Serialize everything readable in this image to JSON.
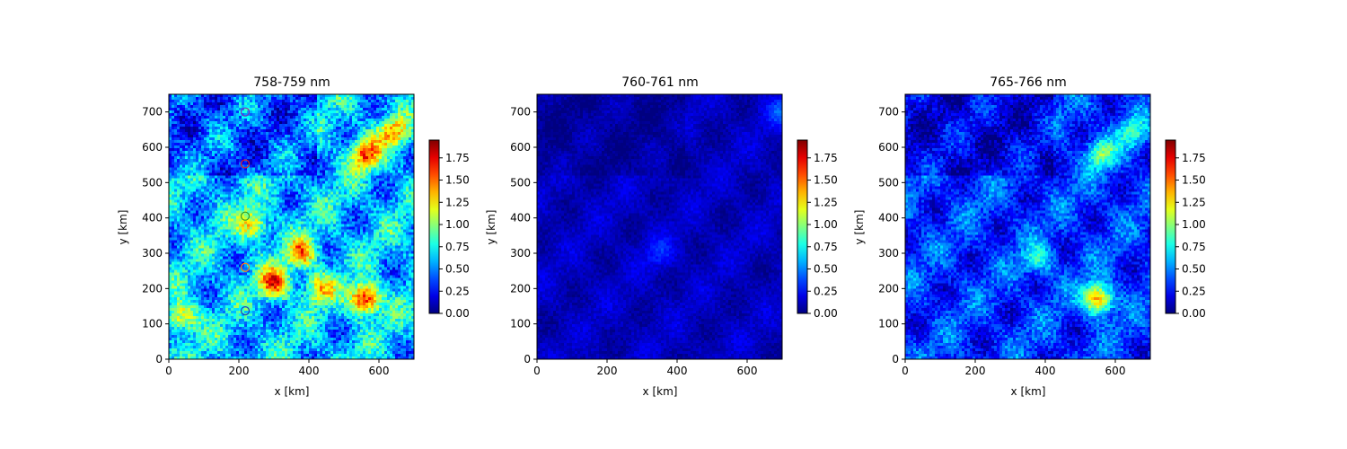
{
  "chart_data": [
    {
      "type": "heatmap",
      "title": "758-759 nm",
      "xlabel": "x [km]",
      "ylabel": "y [km]",
      "xlim": [
        0,
        700
      ],
      "ylim": [
        0,
        750
      ],
      "xticks": [
        0,
        200,
        400,
        600
      ],
      "yticks": [
        0,
        100,
        200,
        300,
        400,
        500,
        600,
        700
      ],
      "colormap": "jet",
      "clim": [
        0,
        1.95
      ],
      "colorbar_ticks": [
        "0.00",
        "0.25",
        "0.50",
        "0.75",
        "1.00",
        "1.25",
        "1.50",
        "1.75"
      ],
      "base_level": 0.62,
      "texture_amplitude": 0.35,
      "hotspots": [
        {
          "x": 560,
          "y": 580,
          "value": 1.55
        },
        {
          "x": 380,
          "y": 300,
          "value": 1.45
        },
        {
          "x": 300,
          "y": 215,
          "value": 1.6
        },
        {
          "x": 560,
          "y": 170,
          "value": 1.9
        },
        {
          "x": 640,
          "y": 640,
          "value": 1.35
        },
        {
          "x": 40,
          "y": 120,
          "value": 1.4
        },
        {
          "x": 240,
          "y": 380,
          "value": 1.35
        },
        {
          "x": 430,
          "y": 200,
          "value": 1.3
        }
      ],
      "markers": [
        {
          "x": 218,
          "y": 700,
          "color": "#7b2cbf"
        },
        {
          "x": 218,
          "y": 553,
          "color": "#d62728"
        },
        {
          "x": 218,
          "y": 405,
          "color": "#2ca02c"
        },
        {
          "x": 218,
          "y": 260,
          "color": "#ff7f0e"
        },
        {
          "x": 218,
          "y": 137,
          "color": "#1f3fbf"
        }
      ]
    },
    {
      "type": "heatmap",
      "title": "760-761 nm",
      "xlabel": "x [km]",
      "ylabel": "y [km]",
      "xlim": [
        0,
        700
      ],
      "ylim": [
        0,
        750
      ],
      "xticks": [
        0,
        200,
        400,
        600
      ],
      "yticks": [
        0,
        100,
        200,
        300,
        400,
        500,
        600,
        700
      ],
      "colormap": "jet",
      "clim": [
        0,
        1.95
      ],
      "colorbar_ticks": [
        "0.00",
        "0.25",
        "0.50",
        "0.75",
        "1.00",
        "1.25",
        "1.50",
        "1.75"
      ],
      "base_level": 0.12,
      "texture_amplitude": 0.1,
      "hotspots": [
        {
          "x": 700,
          "y": 700,
          "value": 0.4
        },
        {
          "x": 350,
          "y": 300,
          "value": 0.3
        }
      ],
      "markers": []
    },
    {
      "type": "heatmap",
      "title": "765-766 nm",
      "xlabel": "x [km]",
      "ylabel": "y [km]",
      "xlim": [
        0,
        700
      ],
      "ylim": [
        0,
        750
      ],
      "xticks": [
        0,
        200,
        400,
        600
      ],
      "yticks": [
        0,
        100,
        200,
        300,
        400,
        500,
        600,
        700
      ],
      "colormap": "jet",
      "clim": [
        0,
        1.95
      ],
      "colorbar_ticks": [
        "0.00",
        "0.25",
        "0.50",
        "0.75",
        "1.00",
        "1.25",
        "1.50",
        "1.75"
      ],
      "base_level": 0.35,
      "texture_amplitude": 0.25,
      "hotspots": [
        {
          "x": 550,
          "y": 170,
          "value": 1.5
        },
        {
          "x": 560,
          "y": 580,
          "value": 0.95
        },
        {
          "x": 380,
          "y": 280,
          "value": 0.8
        },
        {
          "x": 650,
          "y": 640,
          "value": 0.8
        }
      ],
      "markers": []
    }
  ]
}
